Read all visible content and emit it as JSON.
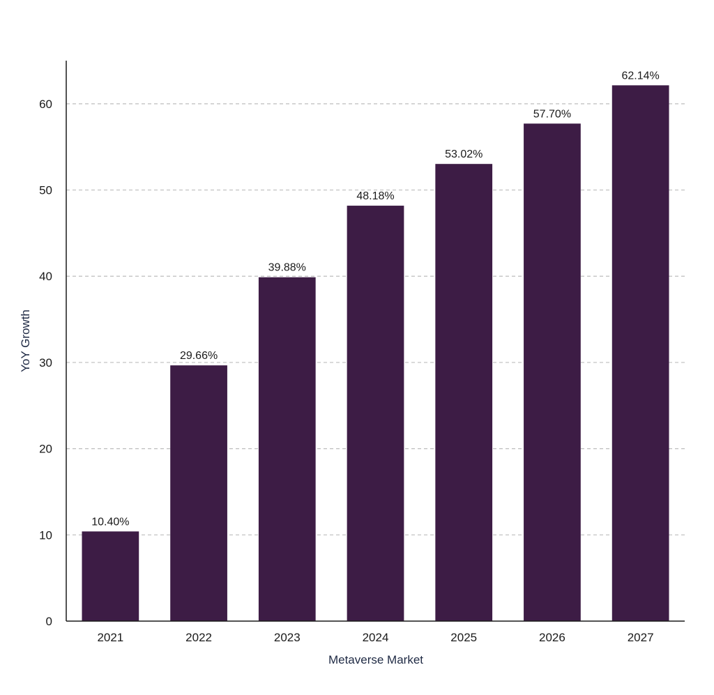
{
  "chart_data": {
    "type": "bar",
    "xlabel": "Metaverse Market",
    "ylabel": "YoY Growth",
    "categories": [
      "2021",
      "2022",
      "2023",
      "2024",
      "2025",
      "2026",
      "2027"
    ],
    "values": [
      10.4,
      29.66,
      39.88,
      48.18,
      53.02,
      57.7,
      62.14
    ],
    "value_labels": [
      "10.40%",
      "29.66%",
      "39.88%",
      "48.18%",
      "53.02%",
      "57.70%",
      "62.14%"
    ],
    "yticks": [
      "0",
      "10",
      "20",
      "30",
      "40",
      "50",
      "60"
    ],
    "ylim": [
      0,
      65
    ],
    "grid": "horizontal dashed",
    "legend": "none",
    "bar_color": "#3d1c45",
    "grid_color": "#bdbdbd",
    "axis_color": "#1a1a1a"
  }
}
